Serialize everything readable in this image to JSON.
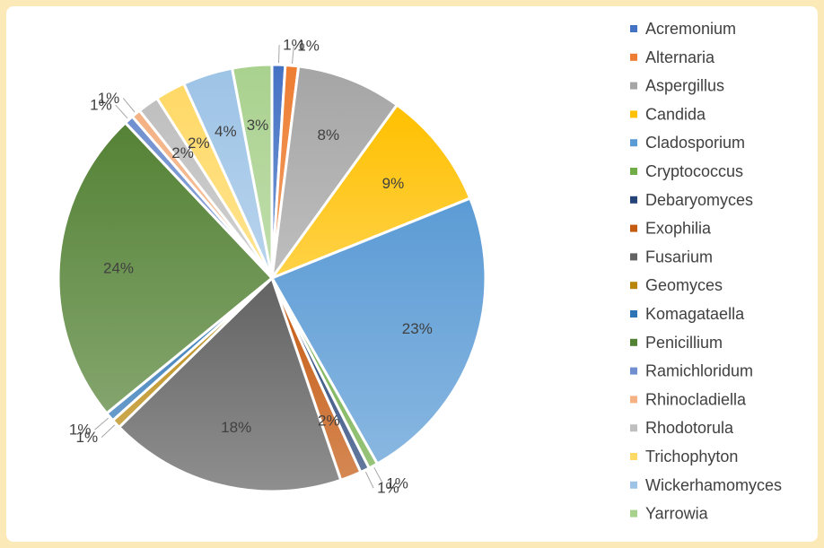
{
  "chart_data": {
    "type": "pie",
    "title": "",
    "legend_position": "right",
    "slices": [
      {
        "label": "Acremonium",
        "value": 1,
        "value_label": "1%",
        "color": "#4472c4"
      },
      {
        "label": "Alternaria",
        "value": 1,
        "value_label": "1%",
        "color": "#ed7d31"
      },
      {
        "label": "Aspergillus",
        "value": 8,
        "value_label": "8%",
        "color": "#a5a5a5"
      },
      {
        "label": "Candida",
        "value": 9,
        "value_label": "9%",
        "color": "#ffc000"
      },
      {
        "label": "Cladosporium",
        "value": 23,
        "value_label": "23%",
        "color": "#5b9bd5"
      },
      {
        "label": "Cryptococcus",
        "value": 0.7,
        "value_label": "1%",
        "color": "#70ad47"
      },
      {
        "label": "Debaryomyces",
        "value": 0.7,
        "value_label": "1%",
        "color": "#264478"
      },
      {
        "label": "Exophilia",
        "value": 1.6,
        "value_label": "2%",
        "color": "#c55a11"
      },
      {
        "label": "Fusarium",
        "value": 18,
        "value_label": "18%",
        "color": "#636363"
      },
      {
        "label": "Geomyces",
        "value": 0.7,
        "value_label": "1%",
        "color": "#b8860b"
      },
      {
        "label": "Komagataella",
        "value": 0.7,
        "value_label": "1%",
        "color": "#2e75b6"
      },
      {
        "label": "Penicillium",
        "value": 24,
        "value_label": "24%",
        "color": "#548235"
      },
      {
        "label": "Ramichloridum",
        "value": 0.7,
        "value_label": "1%",
        "color": "#6f8fcf"
      },
      {
        "label": "Rhinocladiella",
        "value": 0.7,
        "value_label": "1%",
        "color": "#f4b183"
      },
      {
        "label": "Rhodotorula",
        "value": 1.6,
        "value_label": "2%",
        "color": "#bfbfbf"
      },
      {
        "label": "Trichophyton",
        "value": 2.3,
        "value_label": "2%",
        "color": "#ffd966"
      },
      {
        "label": "Wickerhamomyces",
        "value": 3.8,
        "value_label": "4%",
        "color": "#9dc3e6"
      },
      {
        "label": "Yarrowia",
        "value": 3,
        "value_label": "3%",
        "color": "#a9d18e"
      }
    ]
  }
}
